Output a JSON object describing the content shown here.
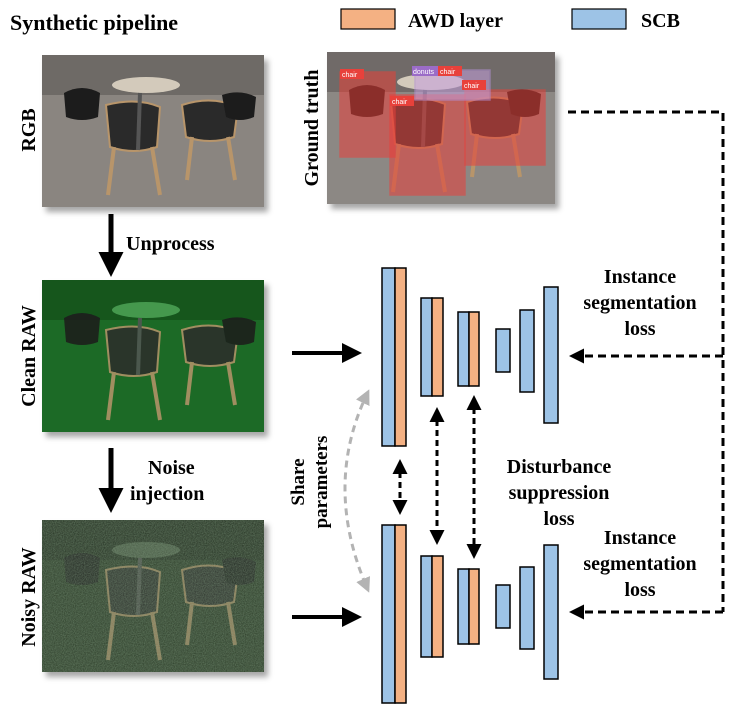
{
  "title": "Synthetic pipeline",
  "legend": [
    {
      "label": "AWD layer",
      "color": "#f4b183"
    },
    {
      "label": "SCB",
      "color": "#9dc3e6"
    }
  ],
  "images": {
    "rgb": {
      "label": "RGB"
    },
    "ground_truth": {
      "label": "Ground truth",
      "tags": [
        "chair",
        "donuts",
        "chair",
        "chair",
        "chair"
      ]
    },
    "clean_raw": {
      "label": "Clean RAW"
    },
    "noisy_raw": {
      "label": "Noisy RAW"
    }
  },
  "arrows": {
    "unprocess": "Unprocess",
    "noise_injection": [
      "Noise",
      "injection"
    ],
    "share_parameters": [
      "Share",
      "parameters"
    ]
  },
  "losses": {
    "instance_top": [
      "Instance",
      "segmentation",
      "loss"
    ],
    "disturbance": [
      "Disturbance",
      "suppression",
      "loss"
    ],
    "instance_bottom": [
      "Instance",
      "segmentation",
      "loss"
    ]
  },
  "colors": {
    "awd": "#f4b183",
    "scb": "#9dc3e6",
    "gt_mask": "#e8413b",
    "raw_green": "#1f7a2a"
  }
}
